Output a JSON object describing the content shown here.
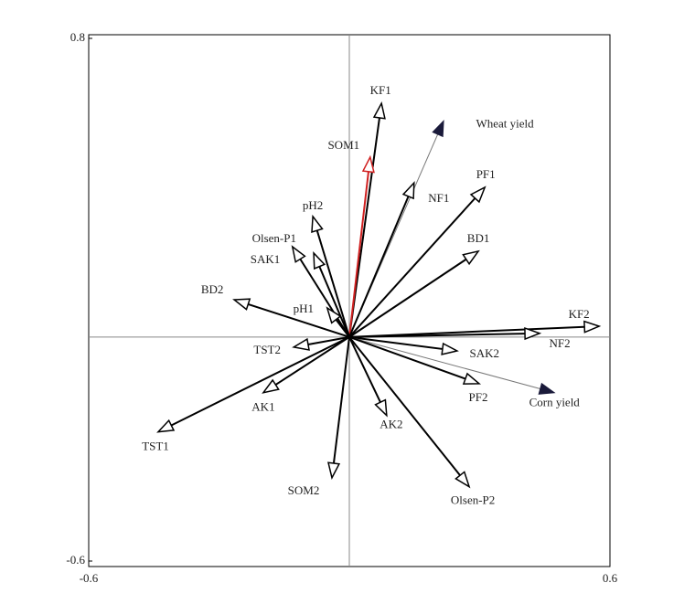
{
  "chart_data": {
    "type": "biplot",
    "labels": [
      "KF1",
      "Wheat yield",
      "SOM1",
      "NF1",
      "PF1",
      "pH2",
      "Olsen-P1",
      "SAK1",
      "BD1",
      "BD2",
      "pH1",
      "KF2",
      "NF2",
      "TST2",
      "SAK2",
      "Corn yield",
      "PF2",
      "AK1",
      "AK2",
      "TST1",
      "SOM2",
      "Olsen-P2"
    ],
    "x": [
      0.074,
      0.217,
      0.048,
      0.149,
      0.312,
      -0.084,
      -0.131,
      -0.082,
      0.297,
      -0.265,
      -0.051,
      0.575,
      0.438,
      -0.128,
      0.248,
      0.472,
      0.299,
      -0.198,
      0.086,
      -0.44,
      -0.04,
      0.276
    ],
    "y": [
      0.626,
      0.579,
      0.482,
      0.413,
      0.401,
      0.323,
      0.242,
      0.225,
      0.23,
      0.1,
      0.078,
      0.029,
      0.01,
      -0.027,
      -0.037,
      -0.149,
      -0.125,
      -0.149,
      -0.21,
      -0.254,
      -0.377,
      -0.401
    ],
    "colors": [
      "#000000",
      "#1a1a3a",
      "#d02020",
      "#000000",
      "#000000",
      "#000000",
      "#000000",
      "#000000",
      "#000000",
      "#000000",
      "#000000",
      "#000000",
      "#000000",
      "#000000",
      "#000000",
      "#1a1a3a",
      "#000000",
      "#000000",
      "#000000",
      "#000000",
      "#000000",
      "#000000"
    ],
    "filled_heads": [
      false,
      true,
      false,
      false,
      false,
      false,
      false,
      false,
      false,
      false,
      false,
      false,
      false,
      false,
      false,
      true,
      false,
      false,
      false,
      false,
      false,
      false
    ],
    "xlim": [
      -0.6,
      0.6
    ],
    "ylim": [
      -0.6,
      0.8
    ],
    "xticks": [
      -0.6,
      0.6
    ],
    "yticks": [
      -0.6,
      0.8
    ]
  }
}
